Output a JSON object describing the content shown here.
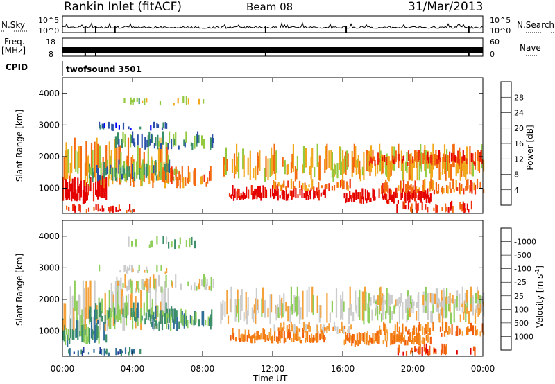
{
  "header": {
    "site": "Rankin Inlet (fitACF)",
    "beam": "Beam 08",
    "date": "31/Mar/2013"
  },
  "chart_data": [
    {
      "type": "line",
      "panel": "noise",
      "left_label": "N.Sky",
      "right_label": "N.Search",
      "left_ticks": [
        "10^5",
        "10^0"
      ],
      "right_ticks": [
        "10^5",
        "10^0"
      ],
      "xlim": [
        0,
        24
      ],
      "style": "dense black trace near the bottom of the panel"
    },
    {
      "type": "line",
      "panel": "frequency",
      "left_label_line1": "Freq.",
      "left_label_line2": "[MHz]",
      "right_label": "Nave",
      "left_ticks": [
        "18",
        "8"
      ],
      "right_ticks": [
        "60",
        "0"
      ],
      "xlim": [
        0,
        24
      ],
      "style": "thick black band"
    },
    {
      "type": "table",
      "panel": "cpid",
      "label": "CPID",
      "value": "twofsound 3501"
    },
    {
      "type": "heatmap",
      "panel": "power",
      "ylabel": "Slant Range [km]",
      "xlim": [
        0,
        24
      ],
      "ylim": [
        200,
        4500
      ],
      "yticks": [
        1000,
        2000,
        3000,
        4000
      ],
      "colorbar": {
        "label": "Power [dB]",
        "labels": [
          "4",
          "8",
          "12",
          "16",
          "20",
          "24",
          "28"
        ],
        "colors": [
          "#0000ff",
          "#2a4fa8",
          "#3a8f68",
          "#92c93e",
          "#f2a81d",
          "#f36a11",
          "#ee2e0d",
          "#e50000"
        ]
      }
    },
    {
      "type": "heatmap",
      "panel": "velocity",
      "ylabel": "Slant Range [km]",
      "xlim": [
        0,
        24
      ],
      "ylim": [
        200,
        4500
      ],
      "yticks": [
        1000,
        2000,
        3000,
        4000
      ],
      "colorbar": {
        "label": "Velocity [m s",
        "label_sup": "-1",
        "label_end": "]",
        "labels": [
          "1000",
          "500",
          "100",
          "25",
          "-25",
          "-100",
          "-500",
          "-1000"
        ],
        "colors": [
          "#1f3b9a",
          "#2f6f9a",
          "#3c8f68",
          "#8fce5a",
          "#cccccc",
          "#f4a13a",
          "#f47a12",
          "#f05a0c",
          "#e30000"
        ]
      }
    }
  ],
  "x_axis": {
    "label": "Time UT",
    "ticks": [
      "00:00",
      "04:00",
      "08:00",
      "12:00",
      "16:00",
      "20:00",
      "00:00"
    ],
    "hours": [
      0,
      4,
      8,
      12,
      16,
      20,
      24
    ]
  }
}
